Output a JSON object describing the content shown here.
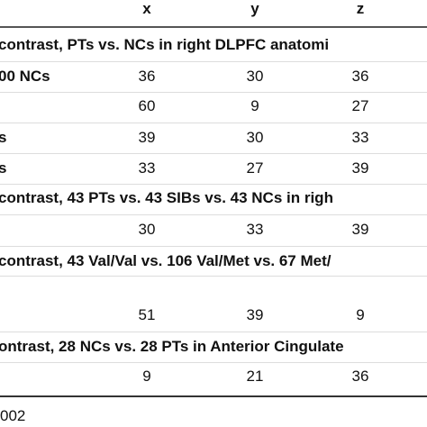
{
  "header": [
    "x",
    "y",
    "z"
  ],
  "rows": [
    {
      "label": "contrast, PTs vs. NCs in right DLPFC anatomi"
    },
    {
      "label": "00 NCs",
      "values": [
        36,
        30,
        36
      ]
    },
    {
      "values": [
        60,
        9,
        27
      ]
    },
    {
      "label": "s",
      "values": [
        39,
        30,
        33
      ]
    },
    {
      "label": "s",
      "values": [
        33,
        27,
        39
      ]
    },
    {
      "label": "contrast, 43 PTs vs. 43 SIBs vs. 43 NCs in righ"
    },
    {
      "values": [
        30,
        33,
        39
      ]
    },
    {
      "label": "contrast, 43 Val/Val vs. 106 Val/Met vs. 67 Met/"
    },
    {
      "values": [
        51,
        39,
        9
      ]
    },
    {
      "label": "ontrast, 28 NCs vs. 28 PTs in Anterior Cingulate"
    },
    {
      "values": [
        9,
        21,
        36
      ]
    }
  ],
  "footer": "002"
}
